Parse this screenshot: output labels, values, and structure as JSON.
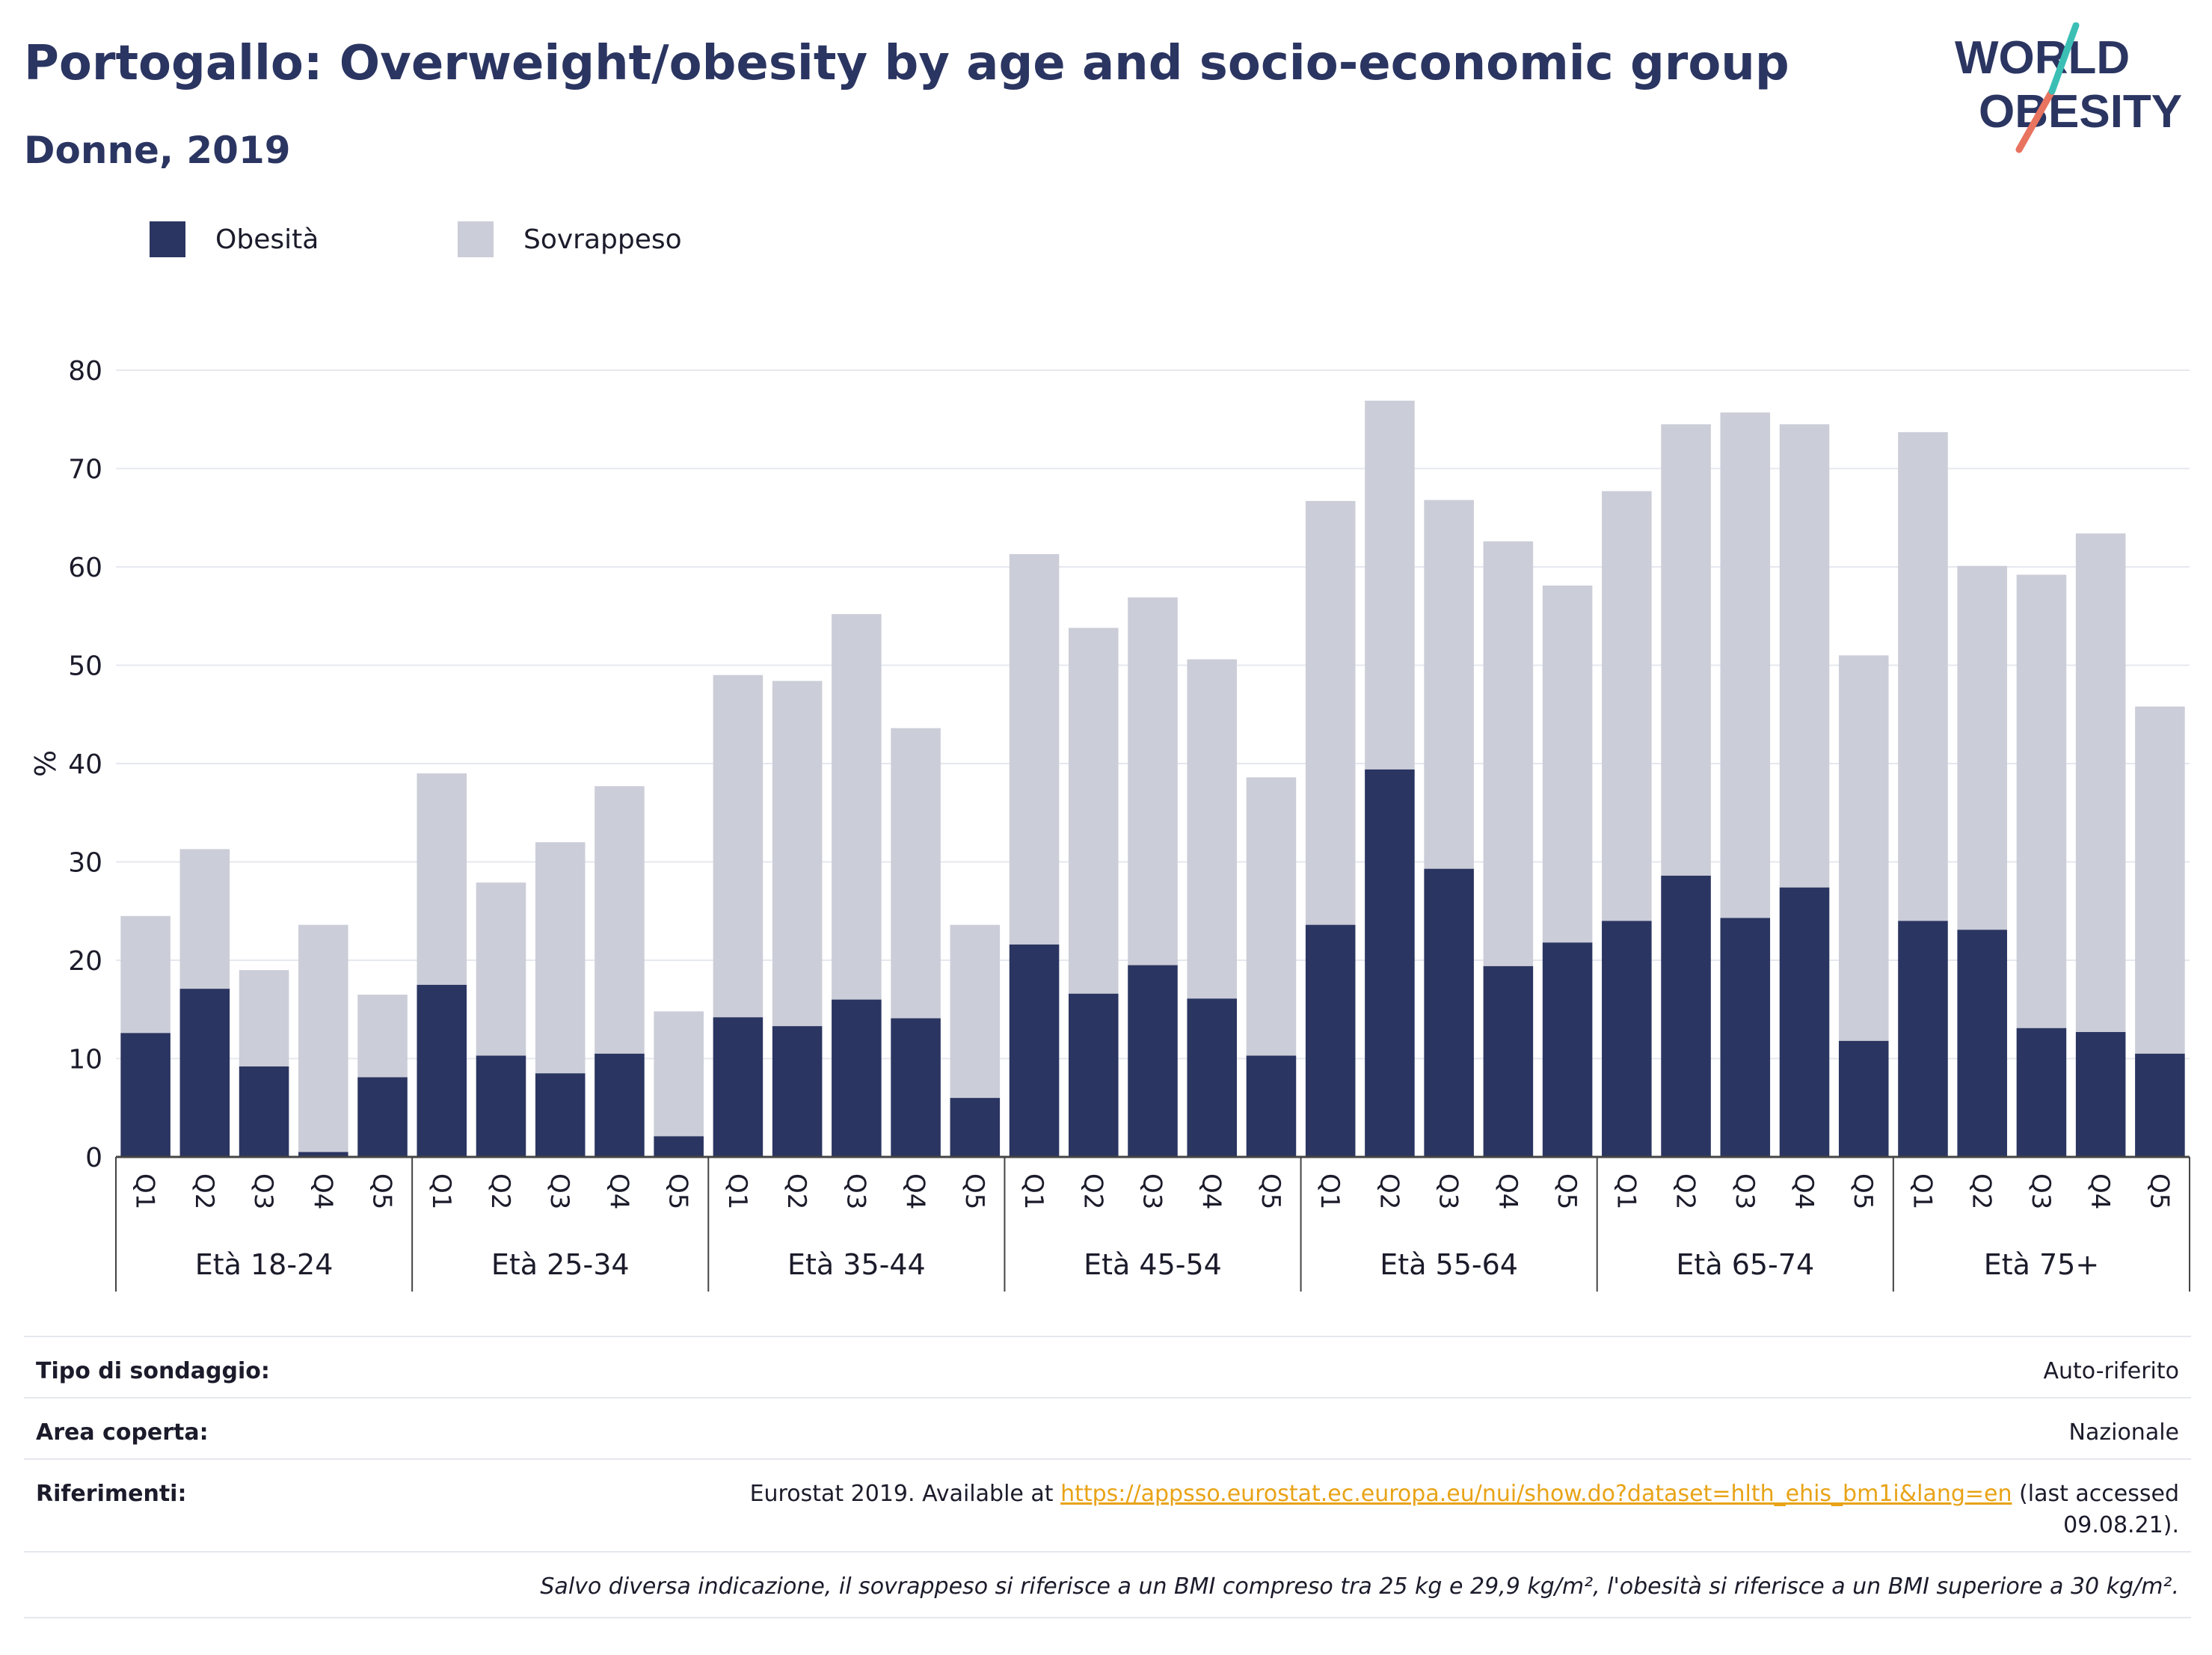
{
  "header": {
    "title": "Portogallo: Overweight/obesity by age and socio-economic group",
    "subtitle": "Donne, 2019"
  },
  "logo": {
    "line1": "WORLD",
    "line2": "OBESITY"
  },
  "legend": {
    "obesity_label": "Obesità",
    "overweight_label": "Sovrappeso"
  },
  "colors": {
    "obesity": "#2b3561",
    "overweight": "#cbcdd8",
    "gridline": "#e6e8ef",
    "accent_teal": "#3bbfb5",
    "accent_coral": "#e8735f"
  },
  "chart_data": {
    "type": "bar",
    "stacked": true,
    "ylabel": "%",
    "ylim": [
      0,
      80
    ],
    "yticks": [
      0,
      10,
      20,
      30,
      40,
      50,
      60,
      70,
      80
    ],
    "quintile_labels": [
      "Q1",
      "Q2",
      "Q3",
      "Q4",
      "Q5"
    ],
    "groups": [
      {
        "label": "Età 18-24",
        "obesity": [
          12.6,
          17.1,
          9.2,
          0.5,
          8.1
        ],
        "total": [
          24.5,
          31.3,
          19.0,
          23.6,
          16.5
        ]
      },
      {
        "label": "Età 25-34",
        "obesity": [
          17.5,
          10.3,
          8.5,
          10.5,
          2.1
        ],
        "total": [
          39.0,
          27.9,
          32.0,
          37.7,
          14.8
        ]
      },
      {
        "label": "Età 35-44",
        "obesity": [
          14.2,
          13.3,
          16.0,
          14.1,
          6.0
        ],
        "total": [
          49.0,
          48.4,
          55.2,
          43.6,
          23.6
        ]
      },
      {
        "label": "Età 45-54",
        "obesity": [
          21.6,
          16.6,
          19.5,
          16.1,
          10.3
        ],
        "total": [
          61.3,
          53.8,
          56.9,
          50.6,
          38.6
        ]
      },
      {
        "label": "Età 55-64",
        "obesity": [
          23.6,
          39.4,
          29.3,
          19.4,
          21.8
        ],
        "total": [
          66.7,
          76.9,
          66.8,
          62.6,
          58.1
        ]
      },
      {
        "label": "Età 65-74",
        "obesity": [
          24.0,
          28.6,
          24.3,
          27.4,
          11.8
        ],
        "total": [
          67.7,
          74.5,
          75.7,
          74.5,
          51.0
        ]
      },
      {
        "label": "Età 75+",
        "obesity": [
          24.0,
          23.1,
          13.1,
          12.7,
          10.5
        ],
        "total": [
          73.7,
          60.1,
          59.2,
          63.4,
          45.8
        ]
      }
    ],
    "series": [
      {
        "name": "Obesità",
        "values": [
          12.6,
          17.1,
          9.2,
          0.5,
          8.1,
          17.5,
          10.3,
          8.5,
          10.5,
          2.1,
          14.2,
          13.3,
          16.0,
          14.1,
          6.0,
          21.6,
          16.6,
          19.5,
          16.1,
          10.3,
          23.6,
          39.4,
          29.3,
          19.4,
          21.8,
          24.0,
          28.6,
          24.3,
          27.4,
          11.8,
          24.0,
          23.1,
          13.1,
          12.7,
          10.5
        ]
      },
      {
        "name": "Sovrappeso",
        "values": [
          11.9,
          14.2,
          9.8,
          23.1,
          8.4,
          21.5,
          17.6,
          23.5,
          27.2,
          12.7,
          34.8,
          35.1,
          39.2,
          29.5,
          17.6,
          39.7,
          37.2,
          37.4,
          34.5,
          28.3,
          43.1,
          37.5,
          37.5,
          43.2,
          36.3,
          43.7,
          45.9,
          51.4,
          47.1,
          39.2,
          49.7,
          37.0,
          46.1,
          50.7,
          35.3
        ]
      }
    ],
    "grid": true,
    "legend_position": "top-left"
  },
  "footer": {
    "rows": [
      {
        "label": "Tipo di sondaggio:",
        "value": "Auto-riferito"
      },
      {
        "label": "Area coperta:",
        "value": "Nazionale"
      }
    ],
    "references_label": "Riferimenti:",
    "references_prefix": "Eurostat 2019. Available at ",
    "references_link": "https://appsso.eurostat.ec.europa.eu/nui/show.do?dataset=hlth_ehis_bm1i&lang=en",
    "references_suffix": " (last accessed",
    "references_date": "09.08.21).",
    "note": "Salvo diversa indicazione, il sovrappeso si riferisce a un BMI compreso tra 25 kg e 29,9 kg/m², l'obesità si riferisce a un BMI superiore a 30 kg/m²."
  }
}
